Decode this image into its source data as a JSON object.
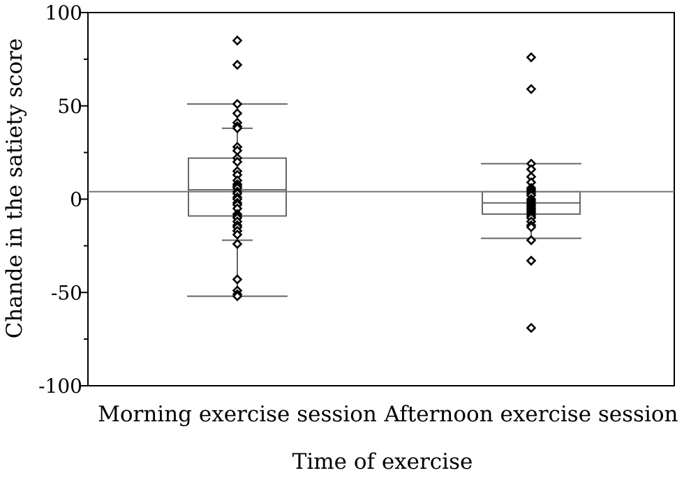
{
  "chart_data": {
    "type": "boxplot",
    "title": "",
    "xlabel": "Time of exercise",
    "ylabel": "Chande in the satiety score",
    "ylim": [
      -100,
      100
    ],
    "yticks": [
      100,
      50,
      0,
      -50,
      -100
    ],
    "yticks_minor": [
      75,
      25,
      -25,
      -75
    ],
    "grid": false,
    "reference_line": {
      "y": 4
    },
    "categories": [
      "Morning exercise session",
      "Afternoon exercise session"
    ],
    "boxes": [
      {
        "category": "Morning exercise session",
        "whisker_low": -52,
        "q1": -9,
        "median": 5,
        "q3": 22,
        "whisker_high": 51,
        "inner_ticks": [
          38,
          -22
        ],
        "points": [
          85,
          72,
          51,
          46,
          41,
          39,
          38,
          28,
          26,
          22,
          20,
          15,
          13,
          10,
          8,
          7,
          6,
          4,
          3,
          1,
          0,
          -2,
          -3,
          -5,
          -8,
          -9,
          -10,
          -12,
          -14,
          -15,
          -17,
          -19,
          -24,
          -43,
          -49,
          -51,
          -52
        ]
      },
      {
        "category": "Afternoon exercise session",
        "whisker_low": -21,
        "q1": -8,
        "median": -2,
        "q3": 4,
        "whisker_high": 19,
        "inner_ticks": [],
        "points": [
          76,
          59,
          19,
          16,
          12,
          9,
          6,
          5,
          4,
          3,
          2,
          0,
          -1,
          -2,
          -3,
          -4,
          -5,
          -6,
          -7,
          -8,
          -9,
          -10,
          -12,
          -14,
          -15,
          -22,
          -33,
          -69
        ]
      }
    ]
  }
}
